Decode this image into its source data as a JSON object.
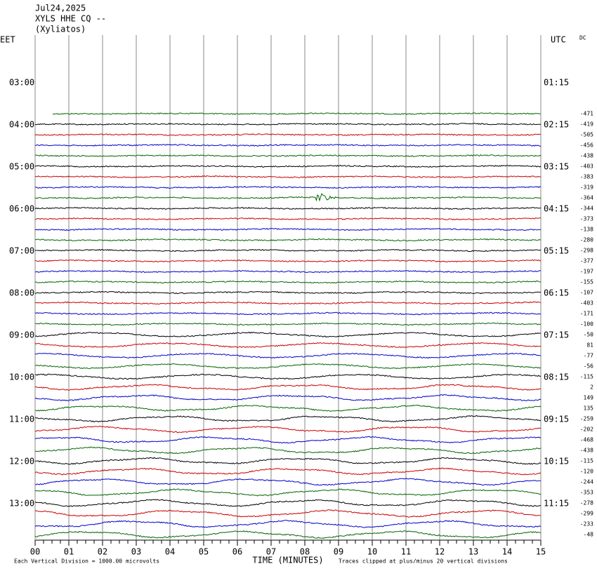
{
  "header": {
    "lines": [
      "Jul24,2025",
      "XYLS HHE CQ --",
      "(Xyliatos)"
    ],
    "left_zone": "EET",
    "right_zone": "UTC",
    "dc_label": "DC"
  },
  "left_times": [
    "03:00",
    "04:00",
    "05:00",
    "06:00",
    "07:00",
    "08:00",
    "09:00",
    "10:00",
    "11:00",
    "12:00",
    "13:00"
  ],
  "right_times": [
    "01:15",
    "02:15",
    "03:15",
    "04:15",
    "05:15",
    "06:15",
    "07:15",
    "08:15",
    "09:15",
    "10:15",
    "11:15"
  ],
  "dc_offsets": [
    -471,
    -419,
    -505,
    -456,
    -438,
    -403,
    -383,
    -319,
    -364,
    -344,
    -373,
    -138,
    -280,
    -298,
    -377,
    -197,
    -155,
    -107,
    -403,
    -171,
    -100,
    -50,
    81,
    -77,
    -56,
    -115,
    2,
    149,
    135,
    -259,
    -202,
    -468,
    -438,
    -115,
    -120,
    -244,
    -353,
    -278,
    -299,
    -233,
    -48
  ],
  "trace_colors": [
    "#000000",
    "#cc0000",
    "#0000cc",
    "#006600"
  ],
  "x_ticks": [
    "00",
    "01",
    "02",
    "03",
    "04",
    "05",
    "06",
    "07",
    "08",
    "09",
    "10",
    "11",
    "12",
    "13",
    "14",
    "15"
  ],
  "x_axis_title": "TIME (MINUTES)",
  "footer_left": "Each Vertical Division = 1000.00 microvolts",
  "footer_right": "Traces clipped at plus/minus 20 vertical divisions"
}
